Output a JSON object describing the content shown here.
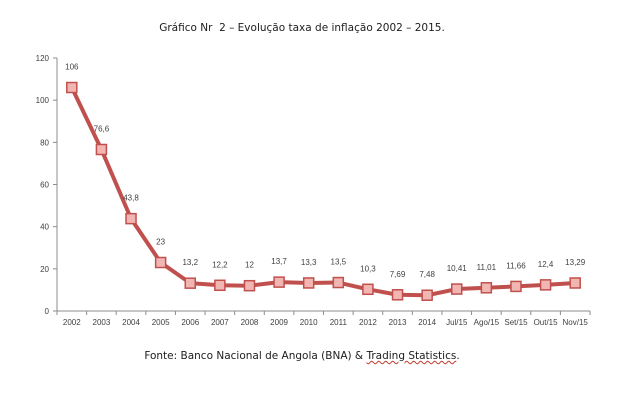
{
  "chart_data": {
    "type": "line",
    "title": "Gráfico Nr  2 – Evolução taxa de inflação 2002 – 2015.",
    "xlabel": "",
    "ylabel": "",
    "ylim": [
      0,
      120
    ],
    "yticks": [
      0,
      20,
      40,
      60,
      80,
      100,
      120
    ],
    "grid": false,
    "legend": "none",
    "categories": [
      "2002",
      "2003",
      "2004",
      "2005",
      "2006",
      "2007",
      "2008",
      "2009",
      "2010",
      "2011",
      "2012",
      "2013",
      "2014",
      "Jul/15",
      "Ago/15",
      "Set/15",
      "Out/15",
      "Nov/15"
    ],
    "series": [
      {
        "values": [
          106,
          76.6,
          43.8,
          23,
          13.2,
          12.2,
          12,
          13.7,
          13.3,
          13.5,
          10.3,
          7.69,
          7.48,
          10.41,
          11.01,
          11.66,
          12.4,
          13.29
        ],
        "labels": [
          "106",
          "76,6",
          "43,8",
          "23",
          "13,2",
          "12,2",
          "12",
          "13,7",
          "13,3",
          "13,5",
          "10,3",
          "7,69",
          "7,48",
          "10,41",
          "11,01",
          "11,66",
          "12,4",
          "13,29"
        ],
        "line_color": "#c0504d",
        "marker_fill": "#f2b6b2",
        "marker_stroke": "#c0504d"
      }
    ]
  },
  "source": {
    "prefix": "Fonte: Banco Nacional de Angola (BNA) & ",
    "underlined": "Trading Statistics",
    "suffix": "."
  }
}
